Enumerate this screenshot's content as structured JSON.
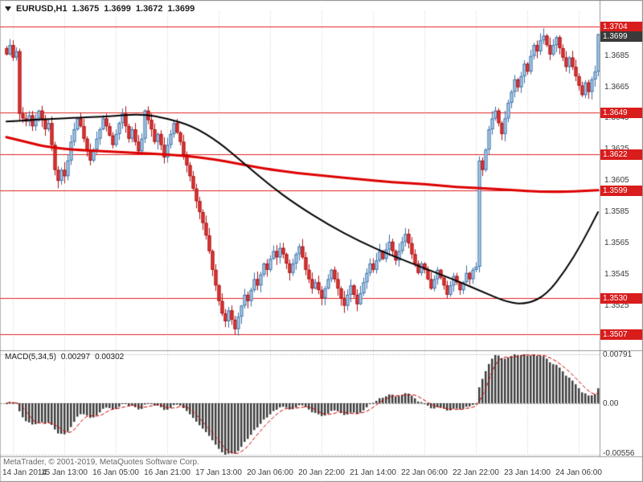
{
  "header": {
    "symbol_timeframe": "EURUSD,H1",
    "open": "1.3675",
    "high": "1.3699",
    "low": "1.3672",
    "close": "1.3699"
  },
  "indicator": {
    "name": "MACD(5,34,5)",
    "value": "0.00297",
    "signal_value": "0.00302"
  },
  "footer": {
    "copyright": "MetaTrader, © 2001-2019, MetaQuotes Software Corp."
  },
  "colors": {
    "bull_fill": "#b5d3ea",
    "bull_border": "#3a6ea8",
    "bear_fill": "#e13b3b",
    "bear_border": "#aa1111",
    "level_line": "#e02020",
    "badge_red": "#d91c1c",
    "badge_dark": "#3a3a3a",
    "ma_black": "#000000",
    "ma_red": "#dd0000",
    "macd_bar": "#3f3f3f",
    "macd_signal": "#cc0000",
    "grid": "#c9c9c9",
    "axis_text": "#3a3a3a"
  },
  "chart_data": {
    "type": "candlestick",
    "symbol": "EURUSD",
    "timeframe": "H1",
    "ohlc_current": {
      "open": 1.3675,
      "high": 1.3699,
      "low": 1.3672,
      "close": 1.3699
    },
    "price_axis": {
      "max": 1.3708,
      "min": 1.3498,
      "ticks": [
        "1.3685",
        "1.3665",
        "1.3645",
        "1.3625",
        "1.3605",
        "1.3585",
        "1.3565",
        "1.3545",
        "1.3525"
      ]
    },
    "levels": [
      {
        "label": "1.3704"
      },
      {
        "label": "1.3649"
      },
      {
        "label": "1.3622"
      },
      {
        "label": "1.3599"
      },
      {
        "label": "1.3530"
      },
      {
        "label": "1.3507"
      }
    ],
    "current_price": {
      "label": "1.3699"
    },
    "closes": [
      1.3686,
      1.3692,
      1.3684,
      1.3688,
      1.3648,
      1.3645,
      1.3643,
      1.3647,
      1.364,
      1.3645,
      1.365,
      1.3644,
      1.3638,
      1.3642,
      1.3628,
      1.3612,
      1.3605,
      1.3612,
      1.3608,
      1.3618,
      1.363,
      1.3638,
      1.3645,
      1.364,
      1.3632,
      1.3625,
      1.3618,
      1.3625,
      1.3632,
      1.3638,
      1.3645,
      1.364,
      1.3634,
      1.3628,
      1.3635,
      1.3642,
      1.3648,
      1.364,
      1.3632,
      1.3638,
      1.363,
      1.3624,
      1.3632,
      1.365,
      1.3644,
      1.3638,
      1.363,
      1.3635,
      1.3628,
      1.362,
      1.3628,
      1.3635,
      1.3642,
      1.3636,
      1.363,
      1.3622,
      1.3615,
      1.3608,
      1.36,
      1.3592,
      1.3585,
      1.3578,
      1.357,
      1.356,
      1.3548,
      1.3538,
      1.3528,
      1.352,
      1.3515,
      1.3522,
      1.3516,
      1.351,
      1.3518,
      1.3525,
      1.3532,
      1.3528,
      1.3535,
      1.3542,
      1.3538,
      1.3545,
      1.3552,
      1.3548,
      1.3555,
      1.356,
      1.3556,
      1.3562,
      1.3558,
      1.3552,
      1.3546,
      1.3552,
      1.3558,
      1.3563,
      1.3556,
      1.3548,
      1.3542,
      1.3536,
      1.354,
      1.3535,
      1.353,
      1.3536,
      1.3542,
      1.3548,
      1.3542,
      1.3536,
      1.353,
      1.3525,
      1.3532,
      1.3538,
      1.3532,
      1.3526,
      1.3533,
      1.354,
      1.3546,
      1.3552,
      1.3548,
      1.3554,
      1.356,
      1.3555,
      1.3561,
      1.3566,
      1.356,
      1.3554,
      1.356,
      1.3566,
      1.3571,
      1.3565,
      1.3558,
      1.3552,
      1.3546,
      1.3552,
      1.3548,
      1.3542,
      1.3536,
      1.3542,
      1.3548,
      1.3543,
      1.3538,
      1.3532,
      1.3538,
      1.3544,
      1.354,
      1.3535,
      1.354,
      1.3546,
      1.3542,
      1.3548,
      1.355,
      1.3618,
      1.3612,
      1.3625,
      1.3638,
      1.3645,
      1.365,
      1.3642,
      1.3635,
      1.3645,
      1.3655,
      1.3662,
      1.367,
      1.3665,
      1.3672,
      1.368,
      1.3675,
      1.3685,
      1.3692,
      1.3688,
      1.3695,
      1.3698,
      1.3692,
      1.3686,
      1.3692,
      1.3697,
      1.369,
      1.3684,
      1.3678,
      1.3684,
      1.3678,
      1.3672,
      1.3666,
      1.366,
      1.3668,
      1.3662,
      1.367,
      1.3675,
      1.3699
    ],
    "x_labels": [
      {
        "i": 2,
        "label": "14 Jan 2014"
      },
      {
        "i": 18,
        "label": "15 Jan 13:00"
      },
      {
        "i": 34,
        "label": "16 Jan 05:00"
      },
      {
        "i": 50,
        "label": "16 Jan 21:00"
      },
      {
        "i": 66,
        "label": "17 Jan 13:00"
      },
      {
        "i": 82,
        "label": "20 Jan 06:00"
      },
      {
        "i": 98,
        "label": "20 Jan 22:00"
      },
      {
        "i": 114,
        "label": "21 Jan 14:00"
      },
      {
        "i": 130,
        "label": "22 Jan 06:00"
      },
      {
        "i": 146,
        "label": "22 Jan 22:00"
      },
      {
        "i": 162,
        "label": "23 Jan 14:00"
      },
      {
        "i": 178,
        "label": "24 Jan 06:00"
      }
    ],
    "ma_black_points": [
      [
        0,
        1.3643
      ],
      [
        15,
        1.3645
      ],
      [
        30,
        1.3646
      ],
      [
        42,
        1.3648
      ],
      [
        50,
        1.3645
      ],
      [
        58,
        1.364
      ],
      [
        66,
        1.363
      ],
      [
        74,
        1.3616
      ],
      [
        82,
        1.3602
      ],
      [
        90,
        1.359
      ],
      [
        100,
        1.3577
      ],
      [
        110,
        1.3566
      ],
      [
        120,
        1.3557
      ],
      [
        130,
        1.3549
      ],
      [
        140,
        1.3541
      ],
      [
        148,
        1.3534
      ],
      [
        156,
        1.3527
      ],
      [
        162,
        1.3526
      ],
      [
        168,
        1.3532
      ],
      [
        174,
        1.3548
      ],
      [
        179,
        1.3565
      ],
      [
        184,
        1.3585
      ]
    ],
    "ma_red_points": [
      [
        0,
        1.3633
      ],
      [
        6,
        1.363
      ],
      [
        12,
        1.3627
      ],
      [
        20,
        1.3625
      ],
      [
        30,
        1.3624
      ],
      [
        40,
        1.3623
      ],
      [
        48,
        1.3622
      ],
      [
        56,
        1.3621
      ],
      [
        64,
        1.3619
      ],
      [
        72,
        1.3616
      ],
      [
        80,
        1.3613
      ],
      [
        90,
        1.361
      ],
      [
        100,
        1.3608
      ],
      [
        110,
        1.3606
      ],
      [
        120,
        1.3604
      ],
      [
        130,
        1.3603
      ],
      [
        140,
        1.3601
      ],
      [
        150,
        1.36
      ],
      [
        158,
        1.3599
      ],
      [
        166,
        1.3598
      ],
      [
        174,
        1.3598
      ],
      [
        184,
        1.3599
      ]
    ],
    "macd": {
      "fast": 5,
      "slow": 34,
      "signal": 5,
      "axis_labels": {
        "max": "0.00791",
        "zero": "0.00",
        "min": "-0.00556"
      }
    }
  }
}
